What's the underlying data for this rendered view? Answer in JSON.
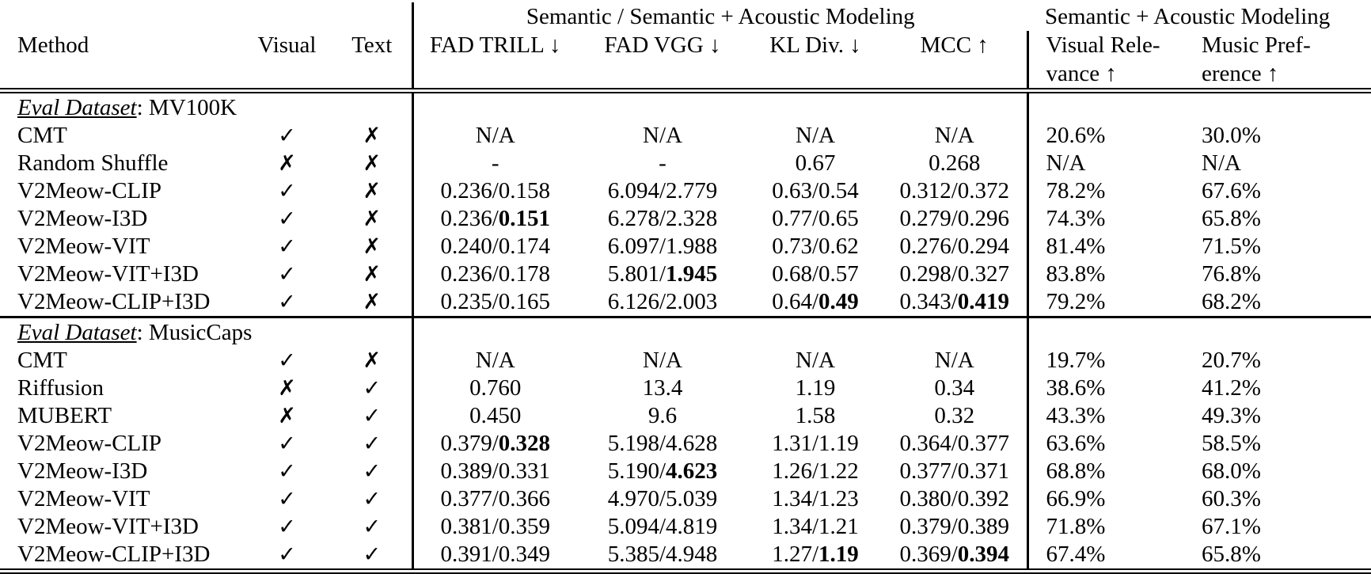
{
  "table": {
    "group_headers": [
      {
        "label": "Semantic / Semantic + Acoustic Modeling"
      },
      {
        "label": "Semantic + Acoustic Modeling"
      }
    ],
    "columns": [
      {
        "line1": "Method"
      },
      {
        "line1": "Visual"
      },
      {
        "line1": "Text"
      },
      {
        "line1": "FAD TRILL ↓"
      },
      {
        "line1": "FAD VGG ↓"
      },
      {
        "line1": "KL Div. ↓"
      },
      {
        "line1": "MCC ↑"
      },
      {
        "line1": "Visual Rele-",
        "line2": "vance ↑"
      },
      {
        "line1": "Music Pref-",
        "line2": "erence ↑"
      }
    ],
    "sections": [
      {
        "label_italic": "Eval Dataset",
        "label_rest": ": MV100K",
        "rows": [
          [
            "CMT",
            "✓",
            "✗",
            "N/A",
            "N/A",
            "N/A",
            "N/A",
            "20.6%",
            "30.0%"
          ],
          [
            "Random Shuffle",
            "✗",
            "✗",
            "-",
            "-",
            "0.67",
            "0.268",
            "N/A",
            "N/A"
          ],
          [
            "V2Meow-CLIP",
            "✓",
            "✗",
            "0.236/0.158",
            "6.094/2.779",
            "0.63/0.54",
            "0.312/0.372",
            "78.2%",
            "67.6%"
          ],
          [
            "V2Meow-I3D",
            "✓",
            "✗",
            "0.236/**0.151**",
            "6.278/2.328",
            "0.77/0.65",
            "0.279/0.296",
            "74.3%",
            "65.8%"
          ],
          [
            "V2Meow-VIT",
            "✓",
            "✗",
            "0.240/0.174",
            "6.097/1.988",
            "0.73/0.62",
            "0.276/0.294",
            "81.4%",
            "71.5%"
          ],
          [
            "V2Meow-VIT+I3D",
            "✓",
            "✗",
            "0.236/0.178",
            "5.801/**1.945**",
            "0.68/0.57",
            "0.298/0.327",
            "83.8%",
            "76.8%"
          ],
          [
            "V2Meow-CLIP+I3D",
            "✓",
            "✗",
            "0.235/0.165",
            "6.126/2.003",
            "0.64/**0.49**",
            "0.343/**0.419**",
            "79.2%",
            "68.2%"
          ]
        ]
      },
      {
        "label_italic": "Eval Dataset",
        "label_rest": ": MusicCaps",
        "rows": [
          [
            "CMT",
            "✓",
            "✗",
            "N/A",
            "N/A",
            "N/A",
            "N/A",
            "19.7%",
            "20.7%"
          ],
          [
            "Riffusion",
            "✗",
            "✓",
            "0.760",
            "13.4",
            "1.19",
            "0.34",
            "38.6%",
            "41.2%"
          ],
          [
            "MUBERT",
            "✗",
            "✓",
            "0.450",
            "9.6",
            "1.58",
            "0.32",
            "43.3%",
            "49.3%"
          ],
          [
            "V2Meow-CLIP",
            "✓",
            "✓",
            "0.379/**0.328**",
            "5.198/4.628",
            "1.31/1.19",
            "0.364/0.377",
            "63.6%",
            "58.5%"
          ],
          [
            "V2Meow-I3D",
            "✓",
            "✓",
            "0.389/0.331",
            "5.190/**4.623**",
            "1.26/1.22",
            "0.377/0.371",
            "68.8%",
            "68.0%"
          ],
          [
            "V2Meow-VIT",
            "✓",
            "✓",
            "0.377/0.366",
            "4.970/5.039",
            "1.34/1.23",
            "0.380/0.392",
            "66.9%",
            "60.3%"
          ],
          [
            "V2Meow-VIT+I3D",
            "✓",
            "✓",
            "0.381/0.359",
            "5.094/4.819",
            "1.34/1.21",
            "0.379/0.389",
            "71.8%",
            "67.1%"
          ],
          [
            "V2Meow-CLIP+I3D",
            "✓",
            "✓",
            "0.391/0.349",
            "5.385/4.948",
            "1.27/**1.19**",
            "0.369/**0.394**",
            "67.4%",
            "65.8%"
          ]
        ]
      }
    ],
    "colors": {
      "text": "#000000",
      "background": "#ffffff",
      "rule": "#000000"
    }
  }
}
